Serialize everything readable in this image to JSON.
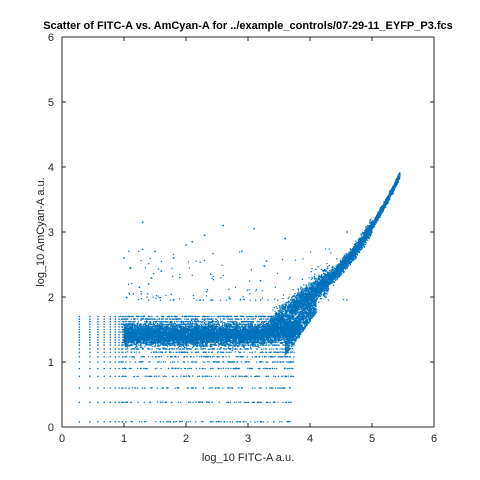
{
  "chart_data": {
    "type": "scatter",
    "title": "Scatter of FITC-A vs. AmCyan-A for ../example_controls/07-29-11_EYFP_P3.fcs",
    "xlabel": "log_10 FITC-A a.u.",
    "ylabel": "log_10 AmCyan-A a.u.",
    "xlim": [
      0,
      6
    ],
    "ylim": [
      0,
      6
    ],
    "xticks": [
      "0",
      "1",
      "2",
      "3",
      "4",
      "5",
      "6"
    ],
    "yticks": [
      "0",
      "1",
      "2",
      "3",
      "4",
      "5",
      "6"
    ],
    "grid": false,
    "legend": "none",
    "marker_color": "#0072BD",
    "series": [
      {
        "description_points": {
          "x": [
            0.28,
            0.45,
            0.58,
            0.68,
            0.78,
            0.9,
            1.0,
            1.2,
            1.5,
            2.0,
            2.5,
            3.0,
            3.5,
            3.7,
            3.9,
            4.1,
            4.3,
            4.5,
            4.7,
            4.9,
            5.1,
            5.3,
            5.42
          ],
          "y": [
            1.7,
            1.8,
            1.85,
            1.8,
            1.8,
            1.9,
            1.95,
            2.1,
            2.0,
            1.95,
            1.9,
            1.85,
            1.95,
            2.1,
            2.15,
            2.3,
            2.45,
            2.6,
            2.8,
            3.0,
            3.25,
            3.55,
            3.78
          ]
        },
        "outliers": {
          "x": [
            1.0,
            1.1,
            1.3,
            1.5,
            1.6,
            1.8,
            1.9,
            2.1,
            2.3,
            2.6,
            2.9,
            3.1,
            3.3,
            3.6,
            3.2,
            2.4,
            1.4,
            2.0,
            4.6,
            1.25
          ],
          "y": [
            2.6,
            2.45,
            3.15,
            2.7,
            2.4,
            2.6,
            2.3,
            2.85,
            2.95,
            3.1,
            2.7,
            3.05,
            2.55,
            2.9,
            2.25,
            2.35,
            2.2,
            2.8,
            3.0,
            2.15
          ]
        }
      }
    ]
  }
}
